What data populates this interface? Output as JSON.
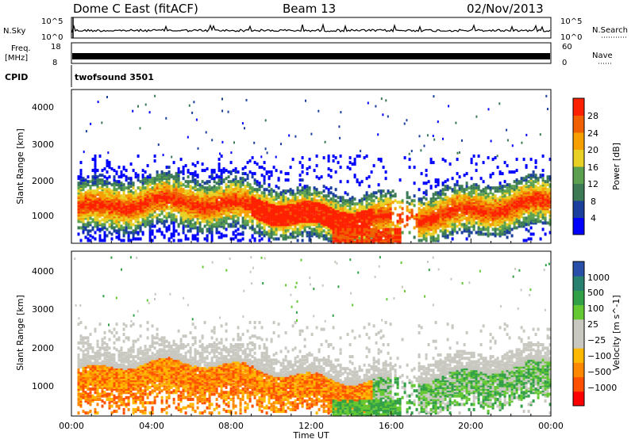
{
  "header": {
    "title": "Dome C East (fitACF)",
    "beam": "Beam 13",
    "date": "02/Nov/2013"
  },
  "panels": {
    "nsky": {
      "left_label": "N.Sky",
      "right_label": "N.Search",
      "left_ticks": [
        "10^5",
        "10^0"
      ],
      "right_ticks": [
        "10^5",
        "10^0"
      ]
    },
    "freq": {
      "left_label_1": "Freq.",
      "left_label_2": "[MHz]",
      "right_label": "Nave",
      "left_ticks": [
        "18",
        "8"
      ],
      "right_ticks": [
        "60",
        "0"
      ]
    },
    "cpid": {
      "label": "CPID",
      "value": "twofsound 3501"
    }
  },
  "colors": {
    "power_scale": [
      "#0000ff",
      "#1a3f9c",
      "#3c7a56",
      "#5aa04e",
      "#e8d024",
      "#f5a000",
      "#f06000",
      "#ff2000"
    ],
    "velocity_scale": [
      "#ff0000",
      "#ff5000",
      "#ff8800",
      "#ffb800",
      "#c8c8c0",
      "#c8c8c0",
      "#64c832",
      "#32a046",
      "#28806e",
      "#2a4fa8"
    ]
  },
  "chart_data": [
    {
      "type": "heatmap",
      "name": "power",
      "xlabel": "",
      "ylabel": "Slant Range [km]",
      "colorbar_label": "Power [dB]",
      "colorbar_ticks": [
        "28",
        "24",
        "20",
        "16",
        "12",
        "8",
        "4"
      ],
      "y_ticks": [
        "4000",
        "3000",
        "2000",
        "1000"
      ],
      "ylim": [
        200,
        4500
      ],
      "xlim": [
        0,
        24
      ]
    },
    {
      "type": "heatmap",
      "name": "velocity",
      "xlabel": "Time UT",
      "ylabel": "Slant Range [km]",
      "colorbar_label": "Velocity [m s^-1]",
      "colorbar_ticks": [
        "1000",
        "500",
        "100",
        "25",
        "−25",
        "−100",
        "−500",
        "−1000"
      ],
      "y_ticks": [
        "4000",
        "3000",
        "2000",
        "1000"
      ],
      "x_ticks": [
        "00:00",
        "04:00",
        "08:00",
        "12:00",
        "16:00",
        "20:00",
        "00:00"
      ],
      "ylim": [
        200,
        4500
      ],
      "xlim": [
        0,
        24
      ]
    }
  ]
}
